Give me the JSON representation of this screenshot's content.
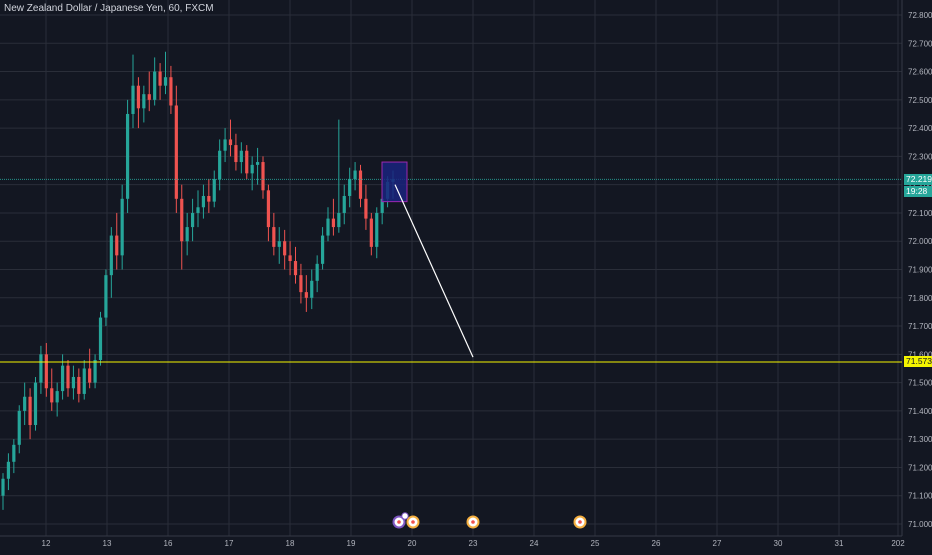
{
  "header": {
    "symbol_title": "New Zealand Dollar / Japanese Yen, 60, FXCM"
  },
  "price_scale": {
    "labels": [
      "72.800",
      "72.700",
      "72.600",
      "72.500",
      "72.400",
      "72.300",
      "72.200",
      "72.100",
      "72.000",
      "71.900",
      "71.800",
      "71.700",
      "71.600",
      "71.500",
      "71.400",
      "71.300",
      "71.200",
      "71.100",
      "71.000"
    ],
    "current_price": "72.219",
    "countdown": "19:28",
    "level_price": "71.573"
  },
  "time_scale": {
    "labels": [
      "12",
      "13",
      "16",
      "17",
      "18",
      "19",
      "20",
      "23",
      "24",
      "25",
      "26",
      "27",
      "30",
      "31",
      "202"
    ]
  },
  "colors": {
    "background": "#131722",
    "grid": "#2a2e39",
    "up": "#26a69a",
    "down": "#ef5350",
    "level_line": "#f5f500",
    "current_line": "#26a69a",
    "projection": "#ffffff",
    "box_fill": "#1a237e",
    "box_border": "#9c27b0"
  },
  "chart_data": {
    "type": "candlestick",
    "y_range": [
      70.97,
      72.89
    ],
    "candles": [
      [
        71.1,
        71.18,
        71.05,
        71.16
      ],
      [
        71.16,
        71.25,
        71.12,
        71.22
      ],
      [
        71.22,
        71.3,
        71.18,
        71.28
      ],
      [
        71.28,
        71.42,
        71.25,
        71.4
      ],
      [
        71.4,
        71.5,
        71.35,
        71.45
      ],
      [
        71.45,
        71.48,
        71.3,
        71.35
      ],
      [
        71.35,
        71.52,
        71.33,
        71.5
      ],
      [
        71.5,
        71.63,
        71.46,
        71.6
      ],
      [
        71.6,
        71.64,
        71.45,
        71.48
      ],
      [
        71.48,
        71.55,
        71.4,
        71.43
      ],
      [
        71.43,
        71.5,
        71.38,
        71.47
      ],
      [
        71.47,
        71.6,
        71.44,
        71.56
      ],
      [
        71.56,
        71.58,
        71.45,
        71.48
      ],
      [
        71.48,
        71.56,
        71.44,
        71.52
      ],
      [
        71.52,
        71.55,
        71.43,
        71.46
      ],
      [
        71.46,
        71.58,
        71.44,
        71.55
      ],
      [
        71.55,
        71.62,
        71.48,
        71.5
      ],
      [
        71.5,
        71.6,
        71.48,
        71.58
      ],
      [
        71.58,
        71.75,
        71.56,
        71.73
      ],
      [
        71.73,
        71.9,
        71.7,
        71.88
      ],
      [
        71.88,
        72.05,
        71.8,
        72.02
      ],
      [
        72.02,
        72.1,
        71.9,
        71.95
      ],
      [
        71.95,
        72.2,
        71.9,
        72.15
      ],
      [
        72.15,
        72.5,
        72.1,
        72.45
      ],
      [
        72.45,
        72.66,
        72.4,
        72.55
      ],
      [
        72.55,
        72.58,
        72.4,
        72.47
      ],
      [
        72.47,
        72.55,
        72.42,
        72.52
      ],
      [
        72.52,
        72.6,
        72.46,
        72.5
      ],
      [
        72.5,
        72.65,
        72.48,
        72.6
      ],
      [
        72.6,
        72.63,
        72.5,
        72.55
      ],
      [
        72.55,
        72.67,
        72.52,
        72.58
      ],
      [
        72.58,
        72.62,
        72.45,
        72.48
      ],
      [
        72.48,
        72.55,
        72.1,
        72.15
      ],
      [
        72.15,
        72.2,
        71.9,
        72.0
      ],
      [
        72.0,
        72.1,
        71.95,
        72.05
      ],
      [
        72.05,
        72.15,
        72.0,
        72.1
      ],
      [
        72.1,
        72.18,
        72.05,
        72.12
      ],
      [
        72.12,
        72.2,
        72.08,
        72.16
      ],
      [
        72.16,
        72.22,
        72.1,
        72.14
      ],
      [
        72.14,
        72.25,
        72.12,
        72.22
      ],
      [
        72.22,
        72.36,
        72.18,
        72.32
      ],
      [
        72.32,
        72.4,
        72.28,
        72.36
      ],
      [
        72.36,
        72.43,
        72.3,
        72.34
      ],
      [
        72.34,
        72.38,
        72.25,
        72.28
      ],
      [
        72.28,
        72.35,
        72.24,
        72.32
      ],
      [
        72.32,
        72.34,
        72.22,
        72.24
      ],
      [
        72.24,
        72.3,
        72.18,
        72.27
      ],
      [
        72.27,
        72.33,
        72.2,
        72.28
      ],
      [
        72.28,
        72.3,
        72.15,
        72.18
      ],
      [
        72.18,
        72.2,
        72.0,
        72.05
      ],
      [
        72.05,
        72.1,
        71.95,
        71.98
      ],
      [
        71.98,
        72.05,
        71.92,
        72.0
      ],
      [
        72.0,
        72.04,
        71.9,
        71.95
      ],
      [
        71.95,
        72.0,
        71.88,
        71.93
      ],
      [
        71.93,
        71.98,
        71.85,
        71.88
      ],
      [
        71.88,
        71.92,
        71.78,
        71.82
      ],
      [
        71.82,
        71.88,
        71.75,
        71.8
      ],
      [
        71.8,
        71.9,
        71.76,
        71.86
      ],
      [
        71.86,
        71.95,
        71.82,
        71.92
      ],
      [
        71.92,
        72.05,
        71.9,
        72.02
      ],
      [
        72.02,
        72.12,
        72.0,
        72.08
      ],
      [
        72.08,
        72.15,
        72.02,
        72.05
      ],
      [
        72.05,
        72.43,
        72.03,
        72.1
      ],
      [
        72.1,
        72.2,
        72.06,
        72.16
      ],
      [
        72.16,
        72.26,
        72.12,
        72.22
      ],
      [
        72.22,
        72.28,
        72.18,
        72.25
      ],
      [
        72.25,
        72.27,
        72.12,
        72.15
      ],
      [
        72.15,
        72.2,
        72.04,
        72.08
      ],
      [
        72.08,
        72.1,
        71.95,
        71.98
      ],
      [
        71.98,
        72.12,
        71.94,
        72.1
      ],
      [
        72.1,
        72.18,
        72.06,
        72.15
      ],
      [
        72.15,
        72.23,
        72.12,
        72.21
      ],
      [
        72.21,
        72.25,
        72.15,
        72.22
      ]
    ],
    "projection": {
      "from_time_index": 72,
      "from_price": 72.2,
      "to_time_label": "23",
      "to_price": 71.59
    },
    "zone_box": {
      "top": 72.28,
      "bottom": 72.14
    },
    "horizontal_levels": [
      72.219,
      71.573
    ]
  }
}
